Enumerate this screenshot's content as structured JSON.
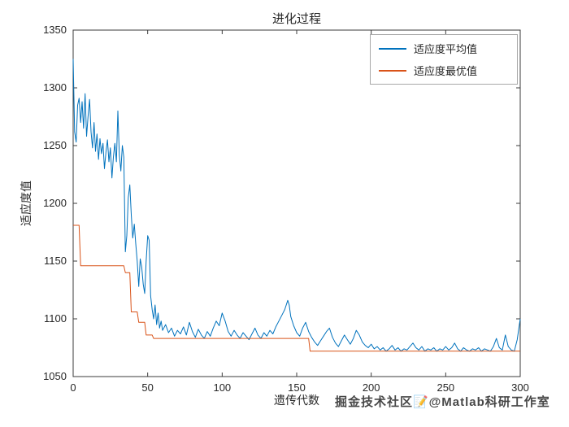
{
  "chart_data": {
    "type": "line",
    "title": "进化过程",
    "xlabel": "遗传代数",
    "ylabel": "适应度值",
    "xlim": [
      0,
      300
    ],
    "ylim": [
      1050,
      1350
    ],
    "xticks": [
      0,
      50,
      100,
      150,
      200,
      250,
      300
    ],
    "yticks": [
      1050,
      1100,
      1150,
      1200,
      1250,
      1300,
      1350
    ],
    "grid": false,
    "legend_position": "top-right",
    "series": [
      {
        "name": "适应度平均值",
        "color": "#0072BD",
        "points": [
          [
            0,
            1325
          ],
          [
            1,
            1262
          ],
          [
            2,
            1253
          ],
          [
            3,
            1285
          ],
          [
            4,
            1291
          ],
          [
            5,
            1270
          ],
          [
            6,
            1288
          ],
          [
            7,
            1265
          ],
          [
            8,
            1295
          ],
          [
            9,
            1258
          ],
          [
            10,
            1275
          ],
          [
            11,
            1290
          ],
          [
            12,
            1262
          ],
          [
            13,
            1248
          ],
          [
            14,
            1270
          ],
          [
            15,
            1245
          ],
          [
            16,
            1260
          ],
          [
            17,
            1238
          ],
          [
            18,
            1256
          ],
          [
            19,
            1243
          ],
          [
            20,
            1252
          ],
          [
            21,
            1230
          ],
          [
            22,
            1244
          ],
          [
            23,
            1255
          ],
          [
            24,
            1236
          ],
          [
            25,
            1248
          ],
          [
            26,
            1222
          ],
          [
            27,
            1240
          ],
          [
            28,
            1252
          ],
          [
            29,
            1236
          ],
          [
            30,
            1280
          ],
          [
            31,
            1242
          ],
          [
            32,
            1228
          ],
          [
            33,
            1250
          ],
          [
            34,
            1240
          ],
          [
            35,
            1158
          ],
          [
            36,
            1172
          ],
          [
            37,
            1205
          ],
          [
            38,
            1216
          ],
          [
            39,
            1190
          ],
          [
            40,
            1170
          ],
          [
            41,
            1182
          ],
          [
            42,
            1165
          ],
          [
            43,
            1150
          ],
          [
            44,
            1128
          ],
          [
            45,
            1152
          ],
          [
            46,
            1145
          ],
          [
            47,
            1130
          ],
          [
            48,
            1122
          ],
          [
            49,
            1150
          ],
          [
            50,
            1172
          ],
          [
            51,
            1168
          ],
          [
            52,
            1120
          ],
          [
            53,
            1108
          ],
          [
            54,
            1100
          ],
          [
            55,
            1112
          ],
          [
            56,
            1095
          ],
          [
            57,
            1105
          ],
          [
            58,
            1092
          ],
          [
            59,
            1098
          ],
          [
            60,
            1090
          ],
          [
            62,
            1095
          ],
          [
            64,
            1088
          ],
          [
            66,
            1092
          ],
          [
            68,
            1085
          ],
          [
            70,
            1090
          ],
          [
            72,
            1087
          ],
          [
            74,
            1093
          ],
          [
            76,
            1086
          ],
          [
            78,
            1097
          ],
          [
            80,
            1089
          ],
          [
            82,
            1084
          ],
          [
            84,
            1091
          ],
          [
            86,
            1086
          ],
          [
            88,
            1083
          ],
          [
            90,
            1089
          ],
          [
            92,
            1085
          ],
          [
            94,
            1092
          ],
          [
            96,
            1098
          ],
          [
            98,
            1094
          ],
          [
            100,
            1105
          ],
          [
            102,
            1098
          ],
          [
            104,
            1089
          ],
          [
            106,
            1085
          ],
          [
            108,
            1090
          ],
          [
            110,
            1086
          ],
          [
            112,
            1083
          ],
          [
            114,
            1088
          ],
          [
            116,
            1085
          ],
          [
            118,
            1082
          ],
          [
            120,
            1087
          ],
          [
            122,
            1092
          ],
          [
            124,
            1086
          ],
          [
            126,
            1083
          ],
          [
            128,
            1088
          ],
          [
            130,
            1085
          ],
          [
            132,
            1090
          ],
          [
            134,
            1087
          ],
          [
            136,
            1093
          ],
          [
            138,
            1098
          ],
          [
            140,
            1103
          ],
          [
            142,
            1108
          ],
          [
            144,
            1116
          ],
          [
            145,
            1112
          ],
          [
            146,
            1102
          ],
          [
            148,
            1094
          ],
          [
            150,
            1088
          ],
          [
            152,
            1085
          ],
          [
            154,
            1092
          ],
          [
            156,
            1097
          ],
          [
            158,
            1089
          ],
          [
            160,
            1084
          ],
          [
            162,
            1080
          ],
          [
            164,
            1077
          ],
          [
            166,
            1081
          ],
          [
            168,
            1085
          ],
          [
            170,
            1089
          ],
          [
            172,
            1092
          ],
          [
            174,
            1084
          ],
          [
            176,
            1079
          ],
          [
            178,
            1076
          ],
          [
            180,
            1081
          ],
          [
            182,
            1086
          ],
          [
            184,
            1082
          ],
          [
            186,
            1078
          ],
          [
            188,
            1083
          ],
          [
            190,
            1090
          ],
          [
            192,
            1086
          ],
          [
            194,
            1080
          ],
          [
            196,
            1077
          ],
          [
            198,
            1075
          ],
          [
            200,
            1078
          ],
          [
            202,
            1074
          ],
          [
            204,
            1076
          ],
          [
            206,
            1073
          ],
          [
            208,
            1075
          ],
          [
            210,
            1072
          ],
          [
            212,
            1074
          ],
          [
            214,
            1077
          ],
          [
            216,
            1073
          ],
          [
            218,
            1075
          ],
          [
            220,
            1072
          ],
          [
            222,
            1074
          ],
          [
            224,
            1073
          ],
          [
            226,
            1076
          ],
          [
            228,
            1079
          ],
          [
            230,
            1075
          ],
          [
            232,
            1073
          ],
          [
            234,
            1076
          ],
          [
            236,
            1072
          ],
          [
            238,
            1074
          ],
          [
            240,
            1073
          ],
          [
            242,
            1075
          ],
          [
            244,
            1072
          ],
          [
            246,
            1074
          ],
          [
            248,
            1073
          ],
          [
            250,
            1076
          ],
          [
            252,
            1073
          ],
          [
            254,
            1075
          ],
          [
            256,
            1079
          ],
          [
            258,
            1074
          ],
          [
            260,
            1072
          ],
          [
            262,
            1075
          ],
          [
            264,
            1073
          ],
          [
            266,
            1072
          ],
          [
            268,
            1074
          ],
          [
            270,
            1073
          ],
          [
            272,
            1075
          ],
          [
            274,
            1072
          ],
          [
            276,
            1074
          ],
          [
            278,
            1073
          ],
          [
            280,
            1072
          ],
          [
            282,
            1076
          ],
          [
            284,
            1083
          ],
          [
            286,
            1075
          ],
          [
            288,
            1073
          ],
          [
            290,
            1086
          ],
          [
            292,
            1076
          ],
          [
            294,
            1073
          ],
          [
            296,
            1072
          ],
          [
            298,
            1082
          ],
          [
            300,
            1100
          ]
        ]
      },
      {
        "name": "适应度最优值",
        "color": "#D95319",
        "points": [
          [
            0,
            1181
          ],
          [
            4,
            1181
          ],
          [
            5,
            1146
          ],
          [
            34,
            1146
          ],
          [
            35,
            1140
          ],
          [
            38,
            1140
          ],
          [
            39,
            1106
          ],
          [
            43,
            1106
          ],
          [
            44,
            1097
          ],
          [
            48,
            1097
          ],
          [
            49,
            1086
          ],
          [
            53,
            1086
          ],
          [
            54,
            1083
          ],
          [
            158,
            1083
          ],
          [
            159,
            1072
          ],
          [
            300,
            1072
          ]
        ]
      }
    ]
  },
  "watermark": {
    "text": "掘金技术社区📝@Matlab科研工作室"
  }
}
